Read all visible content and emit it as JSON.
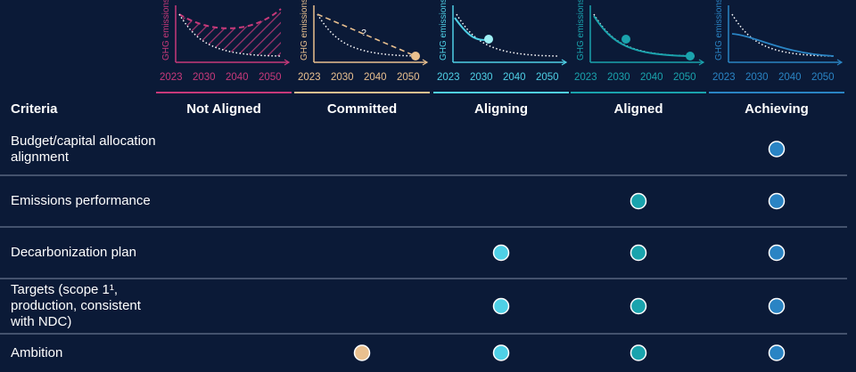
{
  "table": {
    "header": "Criteria",
    "columns": [
      {
        "name": "Not Aligned",
        "color": "#c7397a",
        "y_label": "GHG emissions",
        "x_labels": [
          "2023",
          "2030",
          "2040",
          "2050"
        ]
      },
      {
        "name": "Committed",
        "color": "#e9c08f",
        "y_label": "GHG emissions",
        "x_labels": [
          "2023",
          "2030",
          "2040",
          "2050"
        ],
        "annotation": "?"
      },
      {
        "name": "Aligning",
        "color": "#4fd0e6",
        "y_label": "GHG emissions",
        "x_labels": [
          "2023",
          "2030",
          "2040",
          "2050"
        ]
      },
      {
        "name": "Aligned",
        "color": "#1aa3ad",
        "y_label": "GHG emissions",
        "x_labels": [
          "2023",
          "2030",
          "2040",
          "2050"
        ]
      },
      {
        "name": "Achieving",
        "color": "#2a84c4",
        "y_label": "GHG emissions",
        "x_labels": [
          "2023",
          "2030",
          "2040",
          "2050"
        ]
      }
    ],
    "rows": [
      {
        "label": "Budget/capital allocation alignment",
        "marks": [
          false,
          false,
          false,
          false,
          true
        ]
      },
      {
        "label": "Emissions performance",
        "marks": [
          false,
          false,
          false,
          true,
          true
        ]
      },
      {
        "label": "Decarbonization plan",
        "marks": [
          false,
          false,
          true,
          true,
          true
        ]
      },
      {
        "label": "Targets (scope 1¹, production, consistent with NDC)",
        "marks": [
          false,
          false,
          true,
          true,
          true
        ]
      },
      {
        "label": "Ambition",
        "marks": [
          false,
          true,
          true,
          true,
          true
        ]
      }
    ]
  }
}
